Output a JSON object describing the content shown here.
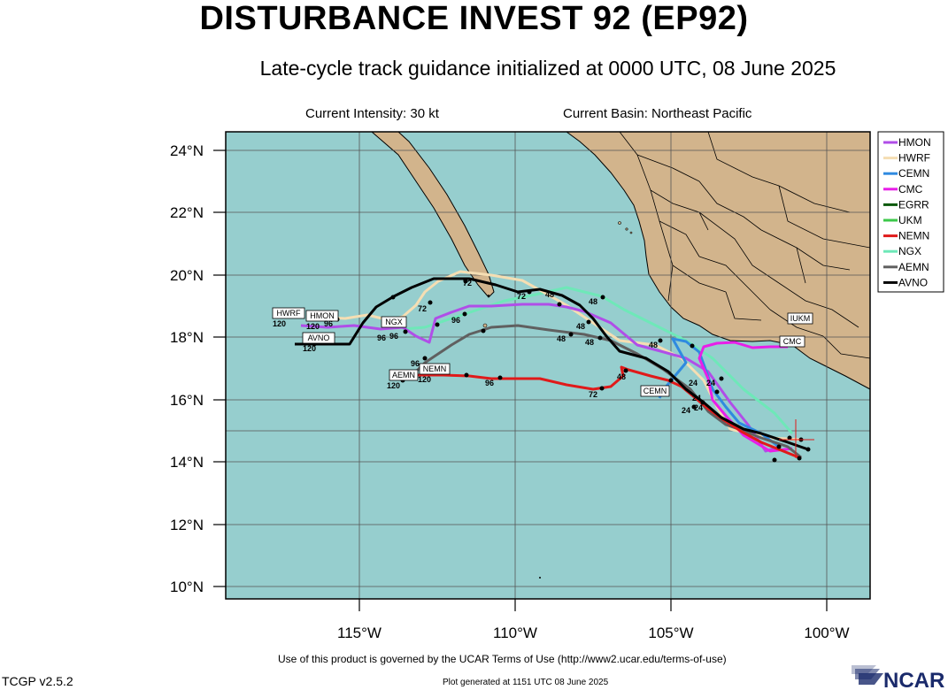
{
  "title": "DISTURBANCE INVEST 92 (EP92)",
  "subtitle": "Late-cycle track guidance initialized at 0000 UTC, 08 June 2025",
  "current_intensity": "Current Intensity: 30 kt",
  "current_basin": "Current Basin: Northeast Pacific",
  "lat_labels": [
    "24°N",
    "22°N",
    "20°N",
    "18°N",
    "16°N",
    "14°N",
    "12°N",
    "10°N"
  ],
  "lon_labels": [
    "115°W",
    "110°W",
    "105°W",
    "100°W"
  ],
  "legend": [
    {
      "name": "HMON",
      "color": "#b04ee8"
    },
    {
      "name": "HWRF",
      "color": "#f5deb3"
    },
    {
      "name": "CEMN",
      "color": "#2f8ae0"
    },
    {
      "name": "CMC",
      "color": "#e81ee8"
    },
    {
      "name": "EGRR",
      "color": "#0a5a0a"
    },
    {
      "name": "UKM",
      "color": "#3cc84a"
    },
    {
      "name": "NEMN",
      "color": "#e01a1a"
    },
    {
      "name": "NGX",
      "color": "#6ee8b8"
    },
    {
      "name": "AEMN",
      "color": "#606060"
    },
    {
      "name": "AVNO",
      "color": "#000000"
    }
  ],
  "colors": {
    "ocean": "#96cece",
    "land": "#d2b48c",
    "border": "#000000"
  },
  "track_labels": [
    "HWRF",
    "HMON",
    "AVNO",
    "NGX",
    "AEMN",
    "NEMN",
    "CEMN",
    "IUKM",
    "CMC"
  ],
  "forecast_hours": [
    "120",
    "120",
    "96",
    "72",
    "72",
    "72",
    "48",
    "48",
    "48",
    "48",
    "48",
    "48",
    "24",
    "24",
    "24",
    "96",
    "96",
    "96",
    "120",
    "120",
    "120",
    "96",
    "96",
    "72",
    "48",
    "24",
    "24"
  ],
  "footer_terms": "Use of this product is governed by the UCAR Terms of Use (http://www2.ucar.edu/terms-of-use)",
  "footer_generated": "Plot generated at 1151 UTC   08 June 2025",
  "version": "TCGP v2.5.2",
  "logo_text": "NCAR"
}
